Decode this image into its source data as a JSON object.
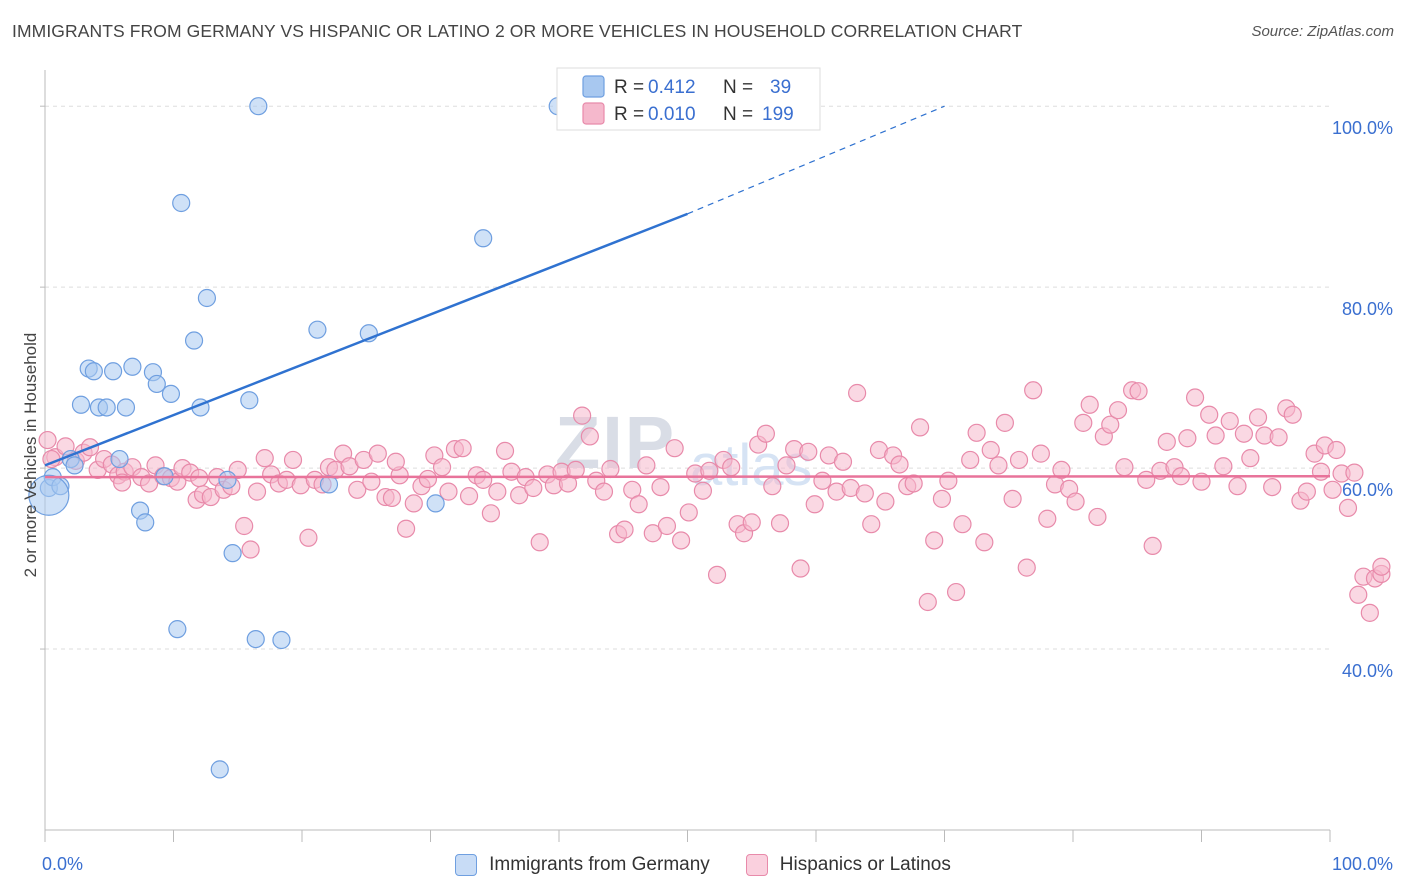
{
  "header": {
    "title": "IMMIGRANTS FROM GERMANY VS HISPANIC OR LATINO 2 OR MORE VEHICLES IN HOUSEHOLD CORRELATION CHART",
    "source": "Source: ZipAtlas.com"
  },
  "watermark": {
    "zip": "ZIP",
    "atlas": "atlas"
  },
  "legend": {
    "r_label": "R =",
    "n_label": "N =",
    "series": [
      {
        "name": "Immigrants from Germany",
        "r": "0.412",
        "n": "39"
      },
      {
        "name": "Hispanics or Latinos",
        "r": "0.010",
        "n": "199"
      }
    ]
  },
  "colors": {
    "blue_fill": "#a8c8f0",
    "blue_stroke": "#6f9fe0",
    "blue_line": "#2f72d0",
    "pink_fill": "#f5b8cc",
    "pink_stroke": "#e88aaa",
    "pink_line": "#e8739a",
    "axis_text": "#3a6fd0",
    "grid": "#dddddd"
  },
  "chart_data": {
    "type": "scatter",
    "title": "IMMIGRANTS FROM GERMANY VS HISPANIC OR LATINO 2 OR MORE VEHICLES IN HOUSEHOLD CORRELATION CHART",
    "xlabel": "",
    "ylabel": "2 or more Vehicles in Household",
    "xlim": [
      0,
      100
    ],
    "ylim": [
      20,
      104
    ],
    "x_tick_labels": [
      "0.0%",
      "100.0%"
    ],
    "y_ticks": [
      {
        "value": 100,
        "label": "100.0%"
      },
      {
        "value": 80,
        "label": "80.0%"
      },
      {
        "value": 60,
        "label": "60.0%"
      },
      {
        "value": 40,
        "label": "40.0%"
      }
    ],
    "grid": true,
    "series": [
      {
        "name": "Immigrants from Germany",
        "color": "blue",
        "trend": {
          "x0": 0,
          "y0": 60.3,
          "x1": 50,
          "y1": 88.1,
          "dash_to_x": 70,
          "dash_to_y": 100
        },
        "points": [
          [
            0.3,
            57.8
          ],
          [
            0.6,
            59.0
          ],
          [
            1.2,
            58.0
          ],
          [
            2.0,
            61.0
          ],
          [
            2.3,
            60.3
          ],
          [
            2.8,
            67.0
          ],
          [
            3.4,
            71.0
          ],
          [
            3.8,
            70.7
          ],
          [
            4.2,
            66.7
          ],
          [
            4.8,
            66.7
          ],
          [
            5.3,
            70.7
          ],
          [
            6.3,
            66.7
          ],
          [
            5.8,
            61.0
          ],
          [
            6.8,
            71.2
          ],
          [
            7.4,
            55.3
          ],
          [
            7.8,
            54.0
          ],
          [
            8.4,
            70.6
          ],
          [
            8.7,
            69.3
          ],
          [
            9.3,
            59.1
          ],
          [
            9.8,
            68.2
          ],
          [
            10.3,
            42.2
          ],
          [
            10.6,
            89.3
          ],
          [
            11.6,
            74.1
          ],
          [
            12.1,
            66.7
          ],
          [
            12.6,
            78.8
          ],
          [
            13.6,
            26.7
          ],
          [
            14.2,
            58.7
          ],
          [
            14.6,
            50.6
          ],
          [
            15.9,
            67.5
          ],
          [
            16.4,
            41.1
          ],
          [
            16.6,
            100.0
          ],
          [
            18.4,
            41.0
          ],
          [
            21.2,
            75.3
          ],
          [
            22.1,
            58.2
          ],
          [
            25.2,
            74.9
          ],
          [
            30.4,
            56.1
          ],
          [
            34.1,
            85.4
          ],
          [
            39.9,
            100.0
          ],
          [
            49.1,
            100.0
          ]
        ]
      },
      {
        "name": "Hispanics or Latinos",
        "color": "pink",
        "trend": {
          "x0": 0,
          "y0": 59.0,
          "x1": 100,
          "y1": 59.1
        },
        "points": [
          [
            0.2,
            63.1
          ],
          [
            0.8,
            61.2
          ],
          [
            1.6,
            62.4
          ],
          [
            2.4,
            60.8
          ],
          [
            3.0,
            61.7
          ],
          [
            3.5,
            62.3
          ],
          [
            4.1,
            59.8
          ],
          [
            4.6,
            61.0
          ],
          [
            5.2,
            60.4
          ],
          [
            5.7,
            59.2
          ],
          [
            6.2,
            59.6
          ],
          [
            6.8,
            60.1
          ],
          [
            7.5,
            59.0
          ],
          [
            8.1,
            58.3
          ],
          [
            8.6,
            60.3
          ],
          [
            9.2,
            59.1
          ],
          [
            9.8,
            58.9
          ],
          [
            10.3,
            58.5
          ],
          [
            10.7,
            60.0
          ],
          [
            11.3,
            59.5
          ],
          [
            11.8,
            56.5
          ],
          [
            12.3,
            57.1
          ],
          [
            12.9,
            56.8
          ],
          [
            13.4,
            59.0
          ],
          [
            13.9,
            57.6
          ],
          [
            14.5,
            58.0
          ],
          [
            15.0,
            59.8
          ],
          [
            15.5,
            53.6
          ],
          [
            16.0,
            51.0
          ],
          [
            16.5,
            57.4
          ],
          [
            17.1,
            61.1
          ],
          [
            17.6,
            59.3
          ],
          [
            18.2,
            58.3
          ],
          [
            18.8,
            58.7
          ],
          [
            19.3,
            60.9
          ],
          [
            19.9,
            58.1
          ],
          [
            20.5,
            52.3
          ],
          [
            21.0,
            58.7
          ],
          [
            21.6,
            58.2
          ],
          [
            22.1,
            60.1
          ],
          [
            22.6,
            59.8
          ],
          [
            23.2,
            61.6
          ],
          [
            23.7,
            60.2
          ],
          [
            24.3,
            57.6
          ],
          [
            24.8,
            60.9
          ],
          [
            25.4,
            58.5
          ],
          [
            25.9,
            61.6
          ],
          [
            26.5,
            56.8
          ],
          [
            27.0,
            56.7
          ],
          [
            27.6,
            59.2
          ],
          [
            28.1,
            53.3
          ],
          [
            28.7,
            56.1
          ],
          [
            29.3,
            58.0
          ],
          [
            29.8,
            58.8
          ],
          [
            30.3,
            61.4
          ],
          [
            30.9,
            60.1
          ],
          [
            31.4,
            57.4
          ],
          [
            31.9,
            62.1
          ],
          [
            32.5,
            62.2
          ],
          [
            33.0,
            56.9
          ],
          [
            33.6,
            59.2
          ],
          [
            34.1,
            58.7
          ],
          [
            34.7,
            55.0
          ],
          [
            35.2,
            57.4
          ],
          [
            35.8,
            61.9
          ],
          [
            36.3,
            59.6
          ],
          [
            36.9,
            57.0
          ],
          [
            37.4,
            59.0
          ],
          [
            38.0,
            57.8
          ],
          [
            38.5,
            51.8
          ],
          [
            39.1,
            59.3
          ],
          [
            39.6,
            58.1
          ],
          [
            40.2,
            59.6
          ],
          [
            40.7,
            58.3
          ],
          [
            41.3,
            59.8
          ],
          [
            41.8,
            65.8
          ],
          [
            42.4,
            63.5
          ],
          [
            42.9,
            58.6
          ],
          [
            43.5,
            57.4
          ],
          [
            44.0,
            59.9
          ],
          [
            44.6,
            52.7
          ],
          [
            45.1,
            53.2
          ],
          [
            45.7,
            57.6
          ],
          [
            46.2,
            56.0
          ],
          [
            46.8,
            60.3
          ],
          [
            47.3,
            52.8
          ],
          [
            47.9,
            57.9
          ],
          [
            48.4,
            53.6
          ],
          [
            49.0,
            62.2
          ],
          [
            49.5,
            52.0
          ],
          [
            50.1,
            55.1
          ],
          [
            50.6,
            59.4
          ],
          [
            51.2,
            57.5
          ],
          [
            51.7,
            59.7
          ],
          [
            52.3,
            48.2
          ],
          [
            52.8,
            60.9
          ],
          [
            53.4,
            60.1
          ],
          [
            53.9,
            53.8
          ],
          [
            54.4,
            52.8
          ],
          [
            55.0,
            54.0
          ],
          [
            55.5,
            62.6
          ],
          [
            56.1,
            63.8
          ],
          [
            56.6,
            58.0
          ],
          [
            57.2,
            53.9
          ],
          [
            57.7,
            60.3
          ],
          [
            58.3,
            62.1
          ],
          [
            58.8,
            48.9
          ],
          [
            59.4,
            61.8
          ],
          [
            59.9,
            56.0
          ],
          [
            60.5,
            58.6
          ],
          [
            61.0,
            61.4
          ],
          [
            61.6,
            57.4
          ],
          [
            62.1,
            60.7
          ],
          [
            62.7,
            57.8
          ],
          [
            63.2,
            68.3
          ],
          [
            63.8,
            57.2
          ],
          [
            64.3,
            53.8
          ],
          [
            64.9,
            62.0
          ],
          [
            65.4,
            56.3
          ],
          [
            66.0,
            61.4
          ],
          [
            66.5,
            60.4
          ],
          [
            67.1,
            58.0
          ],
          [
            67.6,
            58.3
          ],
          [
            68.1,
            64.5
          ],
          [
            68.7,
            45.2
          ],
          [
            69.2,
            52.0
          ],
          [
            69.8,
            56.6
          ],
          [
            70.3,
            58.6
          ],
          [
            70.9,
            46.3
          ],
          [
            71.4,
            53.8
          ],
          [
            72.0,
            60.9
          ],
          [
            72.5,
            63.9
          ],
          [
            73.1,
            51.8
          ],
          [
            73.6,
            62.0
          ],
          [
            74.2,
            60.3
          ],
          [
            74.7,
            65.0
          ],
          [
            75.3,
            56.6
          ],
          [
            75.8,
            60.9
          ],
          [
            76.4,
            49.0
          ],
          [
            76.9,
            68.6
          ],
          [
            77.5,
            61.6
          ],
          [
            78.0,
            54.4
          ],
          [
            78.6,
            58.2
          ],
          [
            79.1,
            59.8
          ],
          [
            79.7,
            57.7
          ],
          [
            80.2,
            56.3
          ],
          [
            80.8,
            65.0
          ],
          [
            81.3,
            67.0
          ],
          [
            81.9,
            54.6
          ],
          [
            82.4,
            63.5
          ],
          [
            82.9,
            64.8
          ],
          [
            83.5,
            66.4
          ],
          [
            84.0,
            60.1
          ],
          [
            84.6,
            68.6
          ],
          [
            85.1,
            68.5
          ],
          [
            85.7,
            58.7
          ],
          [
            86.2,
            51.4
          ],
          [
            86.8,
            59.7
          ],
          [
            87.3,
            62.9
          ],
          [
            87.9,
            60.1
          ],
          [
            88.4,
            59.1
          ],
          [
            88.9,
            63.3
          ],
          [
            89.5,
            67.8
          ],
          [
            90.0,
            58.5
          ],
          [
            90.6,
            65.9
          ],
          [
            91.1,
            63.6
          ],
          [
            91.7,
            60.2
          ],
          [
            92.2,
            65.2
          ],
          [
            92.8,
            58.0
          ],
          [
            93.3,
            63.8
          ],
          [
            93.8,
            61.1
          ],
          [
            94.4,
            65.6
          ],
          [
            94.9,
            63.6
          ],
          [
            95.5,
            57.9
          ],
          [
            96.0,
            63.4
          ],
          [
            96.6,
            66.6
          ],
          [
            97.1,
            65.9
          ],
          [
            97.7,
            56.4
          ],
          [
            98.2,
            57.4
          ],
          [
            98.8,
            61.6
          ],
          [
            99.3,
            59.6
          ],
          [
            99.6,
            62.5
          ],
          [
            100.2,
            57.6
          ],
          [
            100.5,
            62.0
          ],
          [
            100.9,
            59.4
          ],
          [
            101.4,
            55.6
          ],
          [
            101.9,
            59.5
          ],
          [
            102.2,
            46.0
          ],
          [
            102.6,
            48.0
          ],
          [
            103.1,
            44.0
          ],
          [
            103.5,
            47.8
          ],
          [
            104.0,
            48.3
          ],
          [
            104.2,
            49.1
          ],
          [
            0.5,
            61.0
          ],
          [
            6.0,
            58.4
          ],
          [
            12.0,
            58.9
          ],
          [
            27.3,
            60.7
          ]
        ]
      }
    ]
  }
}
